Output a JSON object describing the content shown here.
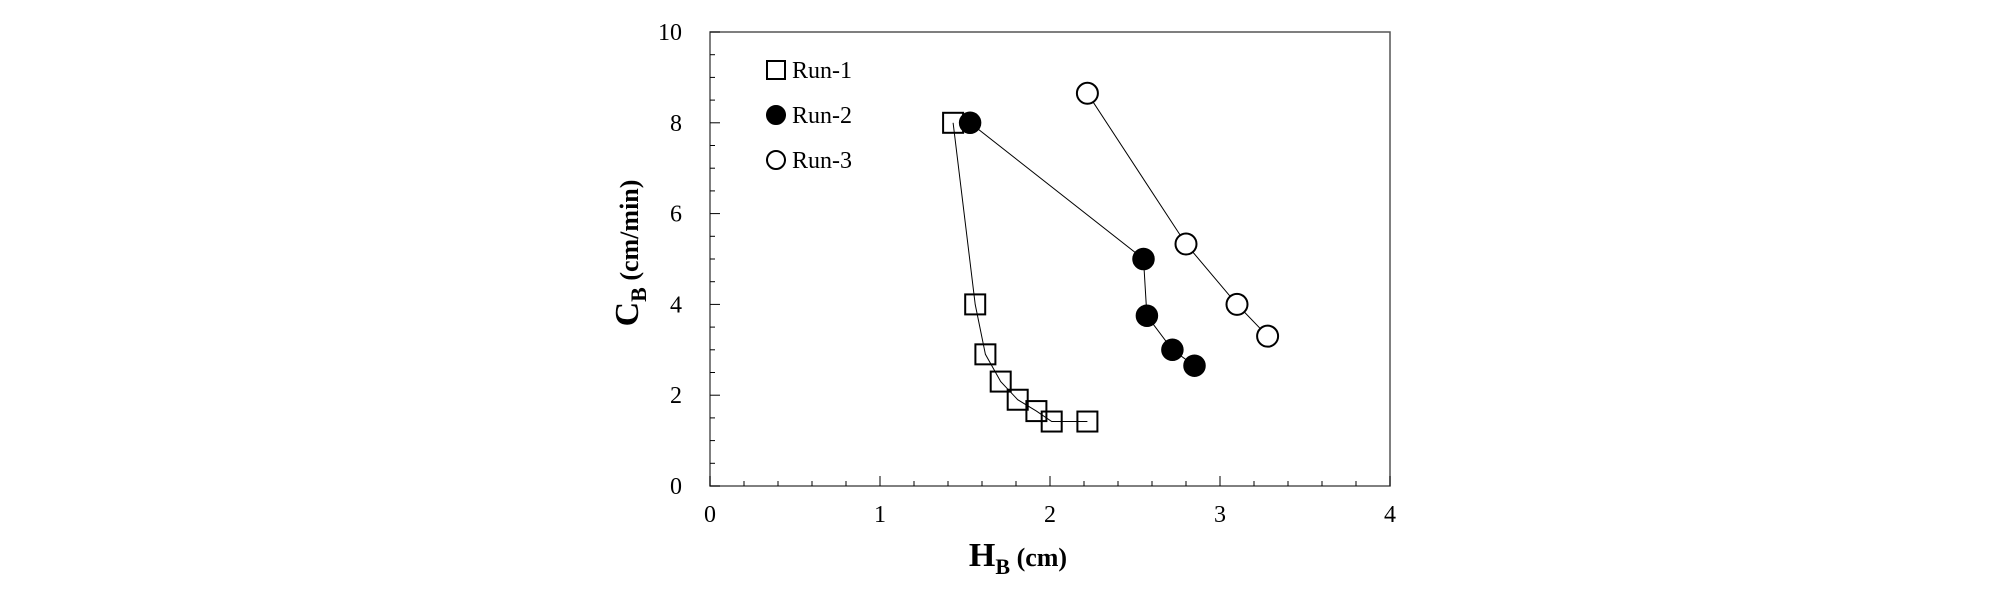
{
  "chart_data": {
    "type": "scatter",
    "xlabel": {
      "main": "H",
      "sub": "B",
      "unit": " (cm)"
    },
    "ylabel": {
      "main": "C",
      "sub": "B",
      "unit": " (cm/min)"
    },
    "xlim": [
      0,
      4
    ],
    "ylim": [
      0,
      10
    ],
    "xticks": [
      0,
      1,
      2,
      3,
      4
    ],
    "yticks": [
      0,
      2,
      4,
      6,
      8,
      10
    ],
    "grid": false,
    "legend_position": "top-left",
    "series": [
      {
        "name": "Run-1",
        "marker": "open-square",
        "x": [
          1.43,
          1.56,
          1.62,
          1.71,
          1.81,
          1.92,
          2.01,
          2.22
        ],
        "y": [
          8.0,
          4.0,
          2.9,
          2.3,
          1.9,
          1.65,
          1.42,
          1.42
        ]
      },
      {
        "name": "Run-2",
        "marker": "filled-circle",
        "x": [
          1.53,
          2.55,
          2.57,
          2.72,
          2.85
        ],
        "y": [
          8.0,
          5.0,
          3.75,
          3.0,
          2.65
        ]
      },
      {
        "name": "Run-3",
        "marker": "open-circle",
        "x": [
          2.22,
          2.8,
          3.1,
          3.28
        ],
        "y": [
          8.65,
          5.33,
          4.0,
          3.3
        ]
      }
    ]
  }
}
